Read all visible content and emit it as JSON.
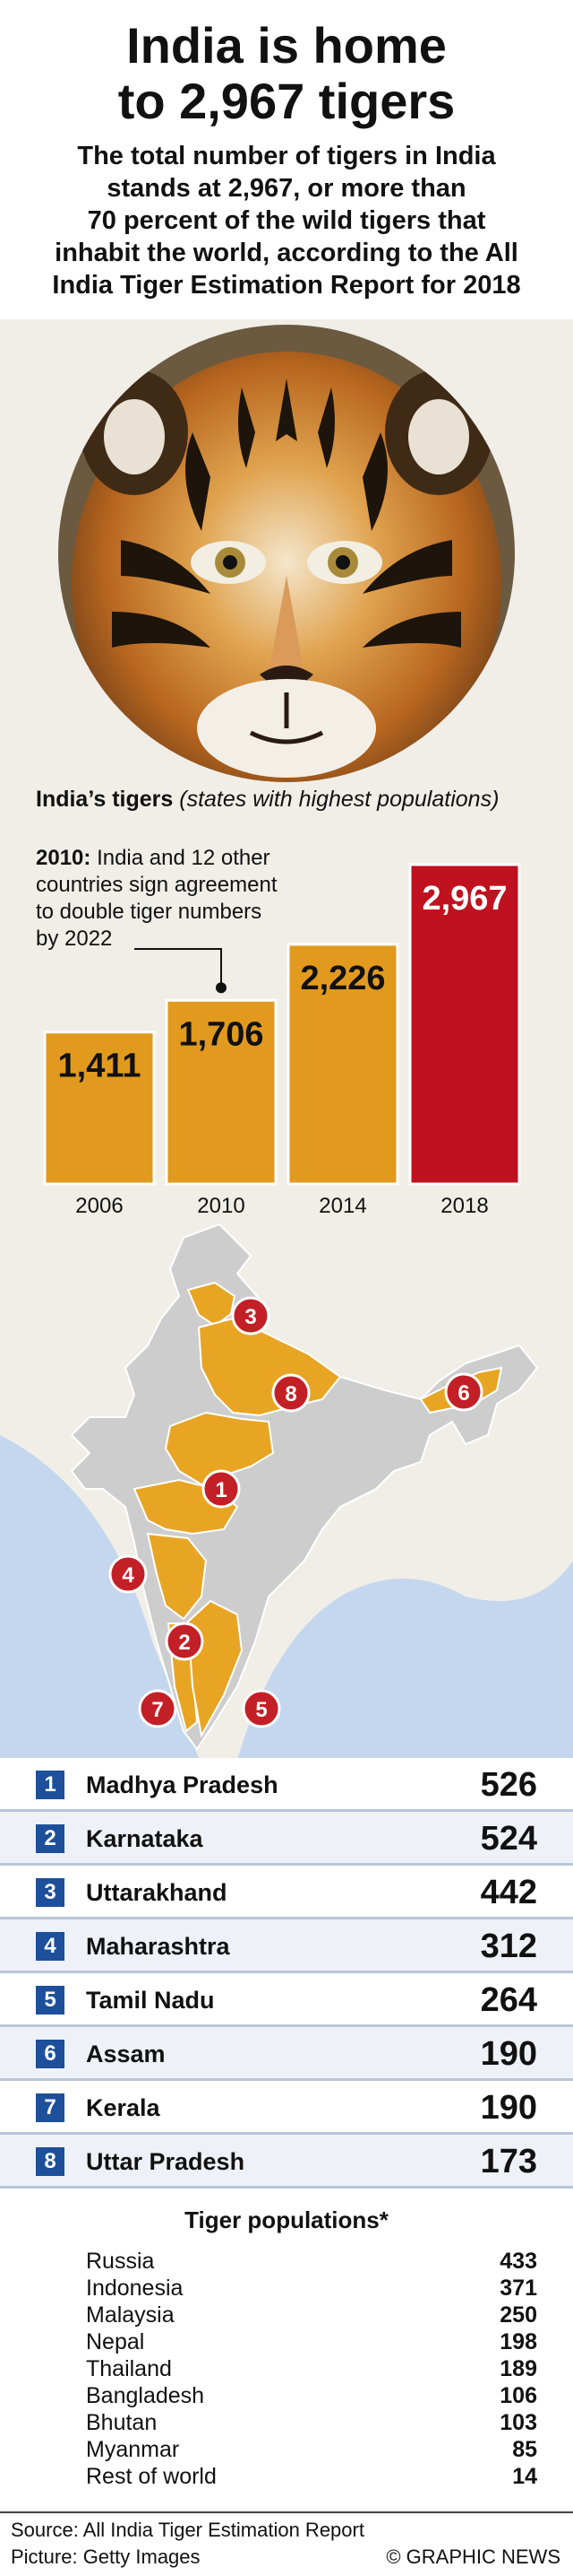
{
  "header": {
    "title_line1": "India is home",
    "title_line2": "to 2,967 tigers",
    "subtitle_lines": [
      "The total number of tigers in India",
      "stands at 2,967, or more than",
      "70 percent of the wild tigers that",
      "inhabit the world, according to the All",
      "India Tiger Estimation Report for 2018"
    ]
  },
  "chart_data": {
    "type": "bar",
    "title": "India’s tigers",
    "subtitle": "(states with highest populations)",
    "categories": [
      "2006",
      "2010",
      "2014",
      "2018"
    ],
    "values": [
      1411,
      1706,
      2226,
      2967
    ],
    "value_labels": [
      "1,411",
      "1,706",
      "2,226",
      "2,967"
    ],
    "ylim": [
      0,
      3000
    ],
    "annotation": {
      "bold": "2010:",
      "text_lines": [
        "India and 12 other",
        "countries sign agreement",
        "to double tiger numbers",
        "by 2022"
      ],
      "category": "2010"
    },
    "colors": {
      "bar": "#e19a1d",
      "highlight": "#c0111e"
    },
    "grid": false
  },
  "map": {
    "markers": [
      "1",
      "2",
      "3",
      "4",
      "5",
      "6",
      "7",
      "8"
    ],
    "colors": {
      "land": "#cdcdcd",
      "highlight": "#e8a524",
      "sea": "#c4d7ee",
      "marker": "#c22026"
    }
  },
  "states": [
    {
      "rank": "1",
      "name": "Madhya Pradesh",
      "value": "526"
    },
    {
      "rank": "2",
      "name": "Karnataka",
      "value": "524"
    },
    {
      "rank": "3",
      "name": "Uttarakhand",
      "value": "442"
    },
    {
      "rank": "4",
      "name": "Maharashtra",
      "value": "312"
    },
    {
      "rank": "5",
      "name": "Tamil Nadu",
      "value": "264"
    },
    {
      "rank": "6",
      "name": "Assam",
      "value": "190"
    },
    {
      "rank": "7",
      "name": "Kerala",
      "value": "190"
    },
    {
      "rank": "8",
      "name": "Uttar Pradesh",
      "value": "173"
    }
  ],
  "populations": {
    "title": "Tiger populations*",
    "items": [
      {
        "name": "Russia",
        "value": "433"
      },
      {
        "name": "Indonesia",
        "value": "371"
      },
      {
        "name": "Malaysia",
        "value": "250"
      },
      {
        "name": "Nepal",
        "value": "198"
      },
      {
        "name": "Thailand",
        "value": "189"
      },
      {
        "name": "Bangladesh",
        "value": "106"
      },
      {
        "name": "Bhutan",
        "value": "103"
      },
      {
        "name": "Myanmar",
        "value": "85"
      },
      {
        "name": "Rest of world",
        "value": "14"
      }
    ]
  },
  "footer": {
    "source": "Source: All India Tiger Estimation Report",
    "picture": "Picture: Getty Images",
    "brand": "© GRAPHIC NEWS"
  }
}
